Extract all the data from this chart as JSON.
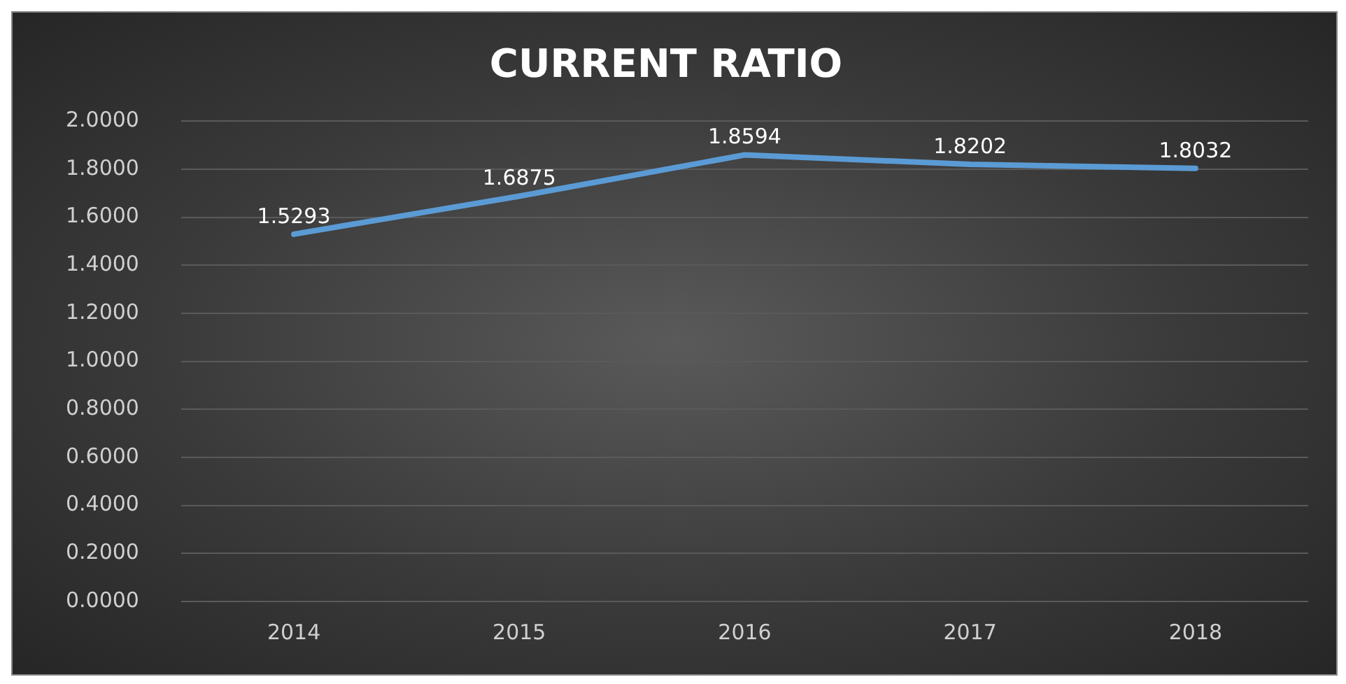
{
  "chart_data": {
    "type": "line",
    "title": "CURRENT RATIO",
    "categories": [
      "2014",
      "2015",
      "2016",
      "2017",
      "2018"
    ],
    "series": [
      {
        "color": "#5b9bd5",
        "values": [
          1.5293,
          1.6875,
          1.8594,
          1.8202,
          1.8032
        ]
      }
    ],
    "ylim": [
      0,
      2
    ],
    "yticks": [
      {
        "value": 0,
        "label": "0.0000"
      },
      {
        "value": 0.2,
        "label": "0.2000"
      },
      {
        "value": 0.4,
        "label": "0.4000"
      },
      {
        "value": 0.6,
        "label": "0.6000"
      },
      {
        "value": 0.8,
        "label": "0.8000"
      },
      {
        "value": 1,
        "label": "1.0000"
      },
      {
        "value": 1.2,
        "label": "1.2000"
      },
      {
        "value": 1.4,
        "label": "1.4000"
      },
      {
        "value": 1.6,
        "label": "1.6000"
      },
      {
        "value": 1.8,
        "label": "1.8000"
      },
      {
        "value": 2,
        "label": "2.0000"
      }
    ],
    "grid": "y",
    "legend": false,
    "marker": "none",
    "line_style": "solid",
    "data_labels": true
  }
}
